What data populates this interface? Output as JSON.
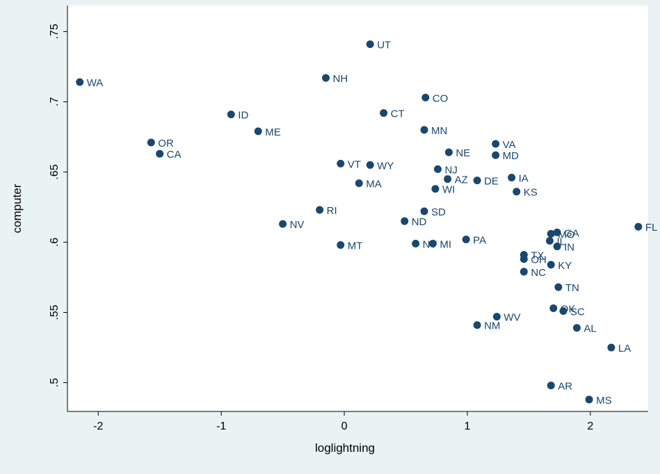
{
  "chart_data": {
    "type": "scatter",
    "x_label": "loglightning",
    "y_label": "computer",
    "color": "#1a476f",
    "xlim": [
      -2.25,
      2.47
    ],
    "ylim": [
      0.4795,
      0.7685
    ],
    "xticks": [
      -2,
      -1,
      0,
      1,
      2
    ],
    "yticks": [
      {
        "value": 0.5,
        "label": ".5"
      },
      {
        "value": 0.55,
        "label": ".55"
      },
      {
        "value": 0.6,
        "label": ".6"
      },
      {
        "value": 0.65,
        "label": ".65"
      },
      {
        "value": 0.7,
        "label": ".7"
      },
      {
        "value": 0.75,
        "label": ".75"
      }
    ],
    "labels": [
      "WA",
      "UT",
      "NH",
      "CO",
      "ID",
      "CT",
      "ME",
      "MN",
      "OR",
      "CA",
      "VA",
      "MD",
      "NE",
      "VT",
      "WY",
      "NJ",
      "AZ",
      "DE",
      "IA",
      "MA",
      "WI",
      "KS",
      "RI",
      "SD",
      "ND",
      "NV",
      "FL",
      "MO",
      "GA",
      "IL",
      "IN",
      "MT",
      "NY",
      "MI",
      "PA",
      "TX",
      "OH",
      "KY",
      "NC",
      "TN",
      "OK",
      "SC",
      "WV",
      "NM",
      "AL",
      "LA",
      "AR",
      "MS"
    ],
    "x": [
      -2.15,
      0.21,
      -0.15,
      0.66,
      -0.92,
      0.32,
      -0.7,
      0.65,
      -1.57,
      -1.5,
      1.23,
      1.23,
      0.85,
      -0.03,
      0.21,
      0.76,
      0.84,
      1.08,
      1.36,
      0.12,
      0.74,
      1.4,
      -0.2,
      0.65,
      0.49,
      -0.5,
      2.39,
      1.68,
      1.73,
      1.67,
      1.73,
      -0.03,
      0.58,
      0.72,
      0.99,
      1.46,
      1.46,
      1.68,
      1.46,
      1.74,
      1.7,
      1.78,
      1.24,
      1.08,
      1.89,
      2.17,
      1.68,
      1.99
    ],
    "values": [
      0.714,
      0.741,
      0.717,
      0.703,
      0.691,
      0.692,
      0.679,
      0.68,
      0.671,
      0.663,
      0.67,
      0.662,
      0.664,
      0.656,
      0.655,
      0.652,
      0.645,
      0.644,
      0.646,
      0.642,
      0.638,
      0.636,
      0.623,
      0.622,
      0.615,
      0.613,
      0.611,
      0.606,
      0.607,
      0.601,
      0.597,
      0.598,
      0.599,
      0.599,
      0.602,
      0.591,
      0.588,
      0.584,
      0.579,
      0.568,
      0.553,
      0.551,
      0.547,
      0.541,
      0.539,
      0.525,
      0.498,
      0.488
    ]
  }
}
